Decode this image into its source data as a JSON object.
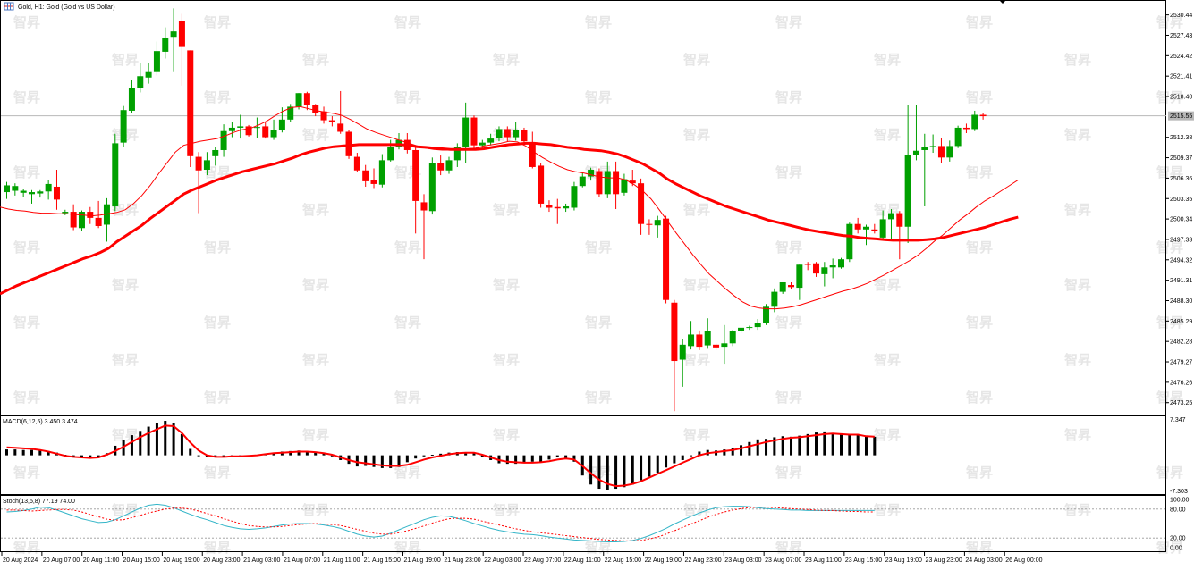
{
  "header": {
    "title": "Gold, H1:  Gold (Gold vs US Dollar)",
    "icon": "chart-window-icon"
  },
  "watermark": "智昇",
  "price_axis": {
    "ticks": [
      "2530.44",
      "2527.43",
      "2524.42",
      "2521.41",
      "2518.40",
      "2512.38",
      "2509.37",
      "2506.36",
      "2503.35",
      "2500.34",
      "2497.33",
      "2494.32",
      "2491.31",
      "2488.30",
      "2485.29",
      "2482.28",
      "2479.27",
      "2476.26",
      "2473.25"
    ],
    "current_price": "2515.55",
    "range": [
      2471.5,
      2532.5
    ]
  },
  "time_axis": {
    "labels": [
      "20 Aug 2024",
      "20 Aug 07:00",
      "20 Aug 11:00",
      "20 Aug 15:00",
      "20 Aug 19:00",
      "20 Aug 23:00",
      "21 Aug 03:00",
      "21 Aug 07:00",
      "21 Aug 11:00",
      "21 Aug 15:00",
      "21 Aug 19:00",
      "21 Aug 23:00",
      "22 Aug 03:00",
      "22 Aug 07:00",
      "22 Aug 11:00",
      "22 Aug 15:00",
      "22 Aug 19:00",
      "22 Aug 23:00",
      "23 Aug 03:00",
      "23 Aug 07:00",
      "23 Aug 11:00",
      "23 Aug 15:00",
      "23 Aug 19:00",
      "23 Aug 23:00",
      "24 Aug 03:00",
      "26 Aug 00:00"
    ]
  },
  "macd": {
    "label": "MACD(6,12,5) 3.450 3.474",
    "top_label": "7.347",
    "bottom_label": "-7.303",
    "range": [
      -7.303,
      7.347
    ],
    "histogram": [
      1.1,
      1.1,
      1.0,
      1.0,
      0.9,
      0.8,
      0.5,
      0.1,
      -0.1,
      -0.3,
      -0.5,
      -0.4,
      0.4,
      1.8,
      2.8,
      3.8,
      4.6,
      5.4,
      6.1,
      6.5,
      6.0,
      4.0,
      1.2,
      -0.1,
      -0.3,
      -0.3,
      -0.2,
      -0.1,
      -0.1,
      -0.1,
      0.1,
      0.3,
      0.5,
      0.7,
      0.8,
      0.9,
      0.8,
      0.6,
      0.4,
      -0.2,
      -0.9,
      -1.6,
      -2.1,
      -2.0,
      -2.2,
      -2.4,
      -2.4,
      -2.2,
      -1.3,
      -0.6,
      -0.2,
      0.1,
      0.3,
      0.5,
      0.6,
      0.6,
      0.4,
      -0.3,
      -0.9,
      -1.5,
      -1.6,
      -1.6,
      -1.5,
      -1.2,
      -1.2,
      -0.8,
      -0.4,
      -0.5,
      -1.2,
      -3.8,
      -5.5,
      -6.3,
      -6.5,
      -6.3,
      -6.0,
      -5.5,
      -4.7,
      -4.0,
      -3.3,
      -2.3,
      -1.5,
      -0.9,
      -0.1,
      0.7,
      1.0,
      0.9,
      1.1,
      1.4,
      1.9,
      2.5,
      3.0,
      3.1,
      3.4,
      3.6,
      3.5,
      3.7,
      4.0,
      4.3,
      4.5,
      4.2,
      4.0,
      3.9,
      3.8,
      3.6,
      3.5
    ],
    "signal": [
      1.5,
      1.4,
      1.3,
      1.2,
      1.0,
      0.7,
      0.3,
      -0.1,
      -0.3,
      -0.4,
      -0.5,
      -0.4,
      0.1,
      0.8,
      1.6,
      2.5,
      3.4,
      4.2,
      4.9,
      5.6,
      5.5,
      4.2,
      2.4,
      0.9,
      0.0,
      -0.3,
      -0.3,
      -0.2,
      -0.2,
      -0.1,
      0.0,
      0.2,
      0.4,
      0.5,
      0.6,
      0.7,
      0.7,
      0.6,
      0.4,
      0.1,
      -0.4,
      -0.9,
      -1.3,
      -1.5,
      -1.7,
      -1.9,
      -2.0,
      -2.0,
      -1.8,
      -1.3,
      -0.8,
      -0.4,
      -0.1,
      0.2,
      0.4,
      0.5,
      0.5,
      0.1,
      -0.4,
      -0.9,
      -1.2,
      -1.3,
      -1.4,
      -1.4,
      -1.3,
      -1.1,
      -0.8,
      -0.6,
      -0.8,
      -2.0,
      -3.4,
      -4.6,
      -5.4,
      -5.8,
      -5.7,
      -5.4,
      -4.9,
      -4.2,
      -3.5,
      -2.8,
      -2.1,
      -1.4,
      -0.7,
      0.0,
      0.4,
      0.6,
      0.8,
      1.0,
      1.3,
      1.7,
      2.1,
      2.5,
      2.8,
      3.1,
      3.3,
      3.4,
      3.6,
      3.8,
      4.0,
      4.1,
      4.0,
      3.9,
      3.9,
      3.6,
      3.5
    ]
  },
  "stoch": {
    "label": "Stoch(13,5,8) 77.19 74.00",
    "levels": [
      "100.00",
      "80.00",
      "20.00",
      "0.00"
    ],
    "main": [
      74,
      75,
      77,
      80,
      84,
      83,
      78,
      72,
      66,
      60,
      56,
      52,
      53,
      58,
      66,
      74,
      82,
      88,
      90,
      88,
      83,
      76,
      69,
      63,
      58,
      52,
      46,
      42,
      39,
      38,
      39,
      41,
      44,
      47,
      49,
      50,
      50,
      49,
      47,
      44,
      40,
      34,
      28,
      24,
      22,
      24,
      30,
      37,
      44,
      51,
      58,
      63,
      66,
      65,
      61,
      56,
      50,
      45,
      40,
      36,
      33,
      30,
      28,
      27,
      25,
      22,
      20,
      18,
      16,
      15,
      14,
      13,
      12,
      12,
      13,
      15,
      19,
      25,
      32,
      40,
      49,
      57,
      65,
      72,
      78,
      83,
      85,
      86,
      86,
      85,
      83,
      81,
      80,
      79,
      78,
      78,
      77,
      77,
      77,
      77,
      77,
      77,
      77,
      77,
      77
    ],
    "signal": [
      78,
      78,
      77,
      76,
      77,
      78,
      79,
      79,
      78,
      74,
      69,
      64,
      59,
      57,
      58,
      62,
      67,
      72,
      76,
      80,
      82,
      82,
      80,
      76,
      71,
      66,
      60,
      55,
      50,
      46,
      44,
      43,
      43,
      44,
      46,
      48,
      49,
      50,
      49,
      48,
      46,
      42,
      38,
      34,
      30,
      28,
      28,
      31,
      35,
      40,
      45,
      51,
      56,
      60,
      61,
      61,
      59,
      55,
      51,
      47,
      43,
      39,
      36,
      33,
      31,
      29,
      27,
      25,
      23,
      21,
      19,
      17,
      16,
      15,
      14,
      14,
      15,
      18,
      22,
      28,
      35,
      42,
      49,
      56,
      63,
      69,
      74,
      78,
      81,
      83,
      84,
      84,
      83,
      82,
      81,
      80,
      79,
      78,
      77,
      77,
      76,
      75,
      75,
      74,
      74
    ]
  },
  "chart_data": {
    "type": "candlestick",
    "symbol": "Gold",
    "timeframe": "H1",
    "colors": {
      "bull": "#00a000",
      "bear": "#ff0000",
      "ma_slow": "#ff0000",
      "ma_fast": "#ff0000",
      "macd_signal": "#ff0000",
      "stoch_main": "#33b5c8",
      "stoch_signal": "#ff0000"
    },
    "candles": [
      [
        2504.3,
        2505.3,
        2503.3,
        2505.8
      ],
      [
        2504.5,
        2505.2,
        2503.8,
        2505.6
      ],
      [
        2504.2,
        2504.5,
        2503.6,
        2504.8
      ],
      [
        2504.0,
        2504.3,
        2502.6,
        2504.6
      ],
      [
        2504.1,
        2504.4,
        2503.5,
        2504.6
      ],
      [
        2504.4,
        2505.5,
        2503.2,
        2506.1
      ],
      [
        2505.1,
        2503.2,
        2501.7,
        2507.6
      ],
      [
        2501.2,
        2501.4,
        2500.9,
        2501.7
      ],
      [
        2501.4,
        2499.1,
        2498.7,
        2502.5
      ],
      [
        2499.0,
        2501.4,
        2498.6,
        2501.6
      ],
      [
        2501.4,
        2500.5,
        2499.6,
        2502.1
      ],
      [
        2500.5,
        2499.3,
        2499.0,
        2503.0
      ],
      [
        2499.5,
        2502.5,
        2497.0,
        2503.4
      ],
      [
        2502.2,
        2511.5,
        2501.5,
        2512.9
      ],
      [
        2511.6,
        2516.4,
        2511.0,
        2517.0
      ],
      [
        2516.3,
        2519.7,
        2516.0,
        2520.9
      ],
      [
        2519.6,
        2521.4,
        2519.0,
        2523.4
      ],
      [
        2521.2,
        2522.0,
        2520.3,
        2523.3
      ],
      [
        2522.0,
        2525.1,
        2521.5,
        2526.5
      ],
      [
        2525.0,
        2527.1,
        2524.0,
        2528.6
      ],
      [
        2527.2,
        2528.0,
        2522.0,
        2531.4
      ],
      [
        2529.6,
        2525.7,
        2520.0,
        2530.6
      ],
      [
        2525.2,
        2509.6,
        2508.0,
        2525.2
      ],
      [
        2509.5,
        2507.5,
        2501.2,
        2510.2
      ],
      [
        2507.6,
        2509.0,
        2506.8,
        2510.2
      ],
      [
        2509.6,
        2510.5,
        2508.2,
        2511.0
      ],
      [
        2510.5,
        2513.3,
        2509.5,
        2514.3
      ],
      [
        2513.3,
        2513.8,
        2512.4,
        2514.7
      ],
      [
        2513.8,
        2514.0,
        2512.2,
        2515.7
      ],
      [
        2514.0,
        2512.7,
        2512.5,
        2514.2
      ],
      [
        2513.9,
        2513.9,
        2512.3,
        2515.3
      ],
      [
        2514.0,
        2512.4,
        2512.2,
        2514.7
      ],
      [
        2512.4,
        2513.5,
        2512.0,
        2515.0
      ],
      [
        2513.5,
        2515.0,
        2513.1,
        2516.8
      ],
      [
        2515.0,
        2516.9,
        2514.7,
        2517.3
      ],
      [
        2516.9,
        2518.9,
        2516.5,
        2518.9
      ],
      [
        2518.9,
        2517.2,
        2516.4,
        2519.1
      ],
      [
        2517.1,
        2516.0,
        2515.5,
        2517.3
      ],
      [
        2516.2,
        2514.9,
        2514.4,
        2516.9
      ],
      [
        2514.9,
        2514.6,
        2514.0,
        2515.5
      ],
      [
        2514.4,
        2513.2,
        2512.9,
        2519.2
      ],
      [
        2513.2,
        2509.6,
        2509.2,
        2513.4
      ],
      [
        2509.5,
        2507.5,
        2507.3,
        2510.1
      ],
      [
        2507.5,
        2505.9,
        2505.1,
        2508.3
      ],
      [
        2506.1,
        2505.5,
        2504.9,
        2507.8
      ],
      [
        2505.4,
        2509.0,
        2505.0,
        2509.9
      ],
      [
        2509.0,
        2511.0,
        2508.8,
        2512.0
      ],
      [
        2511.0,
        2512.0,
        2510.6,
        2513.0
      ],
      [
        2512.0,
        2510.5,
        2510.0,
        2513.0
      ],
      [
        2510.5,
        2503.0,
        2498.2,
        2511.0
      ],
      [
        2502.8,
        2501.6,
        2494.4,
        2504.0
      ],
      [
        2501.5,
        2508.6,
        2501.0,
        2509.4
      ],
      [
        2508.6,
        2507.5,
        2506.8,
        2509.7
      ],
      [
        2507.5,
        2509.0,
        2507.0,
        2509.5
      ],
      [
        2509.0,
        2511.0,
        2508.0,
        2511.5
      ],
      [
        2511.0,
        2515.3,
        2508.6,
        2517.5
      ],
      [
        2515.3,
        2511.2,
        2510.8,
        2515.6
      ],
      [
        2511.2,
        2511.6,
        2510.7,
        2512.0
      ],
      [
        2511.6,
        2512.2,
        2511.2,
        2512.9
      ],
      [
        2512.2,
        2513.6,
        2511.8,
        2514.0
      ],
      [
        2513.6,
        2512.4,
        2511.8,
        2514.0
      ],
      [
        2512.4,
        2513.4,
        2511.9,
        2514.6
      ],
      [
        2513.4,
        2511.8,
        2511.4,
        2513.8
      ],
      [
        2511.6,
        2508.0,
        2507.8,
        2513.2
      ],
      [
        2508.2,
        2502.6,
        2502.0,
        2508.6
      ],
      [
        2502.4,
        2502.0,
        2501.4,
        2503.1
      ],
      [
        2502.1,
        2501.9,
        2499.6,
        2503.3
      ],
      [
        2501.9,
        2502.2,
        2501.4,
        2502.6
      ],
      [
        2502.0,
        2505.2,
        2501.6,
        2505.8
      ],
      [
        2505.2,
        2506.6,
        2505.0,
        2507.2
      ],
      [
        2506.6,
        2507.6,
        2506.0,
        2507.9
      ],
      [
        2507.4,
        2504.0,
        2503.6,
        2507.8
      ],
      [
        2504.0,
        2507.4,
        2503.4,
        2508.8
      ],
      [
        2507.4,
        2504.0,
        2501.8,
        2508.8
      ],
      [
        2504.2,
        2506.2,
        2503.8,
        2507.0
      ],
      [
        2506.0,
        2505.6,
        2505.2,
        2507.6
      ],
      [
        2505.6,
        2499.6,
        2498.0,
        2506.3
      ],
      [
        2499.6,
        2499.5,
        2498.0,
        2500.3
      ],
      [
        2499.4,
        2500.2,
        2497.6,
        2500.8
      ],
      [
        2500.4,
        2488.4,
        2487.9,
        2500.8
      ],
      [
        2488.0,
        2479.4,
        2472.0,
        2488.4
      ],
      [
        2479.6,
        2481.8,
        2475.6,
        2482.6
      ],
      [
        2481.6,
        2483.3,
        2481.1,
        2485.3
      ],
      [
        2483.3,
        2481.5,
        2481.0,
        2483.9
      ],
      [
        2481.7,
        2483.8,
        2481.2,
        2485.7
      ],
      [
        2481.8,
        2481.4,
        2481.0,
        2482.0
      ],
      [
        2481.5,
        2482.0,
        2479.0,
        2484.7
      ],
      [
        2482.0,
        2483.8,
        2481.6,
        2484.0
      ],
      [
        2483.8,
        2484.3,
        2483.5,
        2484.3
      ],
      [
        2484.3,
        2484.4,
        2484.0,
        2484.6
      ],
      [
        2484.4,
        2485.0,
        2484.0,
        2485.6
      ],
      [
        2485.0,
        2487.4,
        2484.7,
        2487.8
      ],
      [
        2487.4,
        2489.6,
        2486.6,
        2490.1
      ],
      [
        2489.6,
        2491.0,
        2489.3,
        2491.0
      ],
      [
        2490.6,
        2490.3,
        2490.0,
        2491.0
      ],
      [
        2490.2,
        2493.6,
        2488.4,
        2493.6
      ],
      [
        2493.7,
        2493.6,
        2492.8,
        2494.0
      ],
      [
        2493.8,
        2492.3,
        2491.8,
        2494.0
      ],
      [
        2492.2,
        2493.2,
        2490.4,
        2494.0
      ],
      [
        2493.2,
        2493.5,
        2491.6,
        2494.5
      ],
      [
        2493.2,
        2494.4,
        2493.0,
        2494.6
      ],
      [
        2494.4,
        2499.6,
        2494.0,
        2499.8
      ],
      [
        2499.6,
        2498.8,
        2498.2,
        2500.5
      ],
      [
        2498.8,
        2499.2,
        2496.5,
        2499.5
      ],
      [
        2498.8,
        2498.6,
        2498.2,
        2499.6
      ],
      [
        2497.6,
        2500.3,
        2497.3,
        2501.6
      ],
      [
        2500.3,
        2501.2,
        2497.2,
        2501.8
      ],
      [
        2501.2,
        2499.2,
        2494.4,
        2501.5
      ],
      [
        2499.2,
        2509.8,
        2496.8,
        2517.2
      ],
      [
        2509.8,
        2510.4,
        2509.0,
        2517.2
      ],
      [
        2510.5,
        2510.9,
        2502.2,
        2512.9
      ],
      [
        2510.9,
        2511.1,
        2510.1,
        2512.8
      ],
      [
        2511.1,
        2509.4,
        2508.6,
        2512.3
      ],
      [
        2509.4,
        2511.1,
        2508.8,
        2511.9
      ],
      [
        2511.1,
        2513.8,
        2510.8,
        2514.1
      ],
      [
        2513.8,
        2513.6,
        2513.0,
        2514.4
      ],
      [
        2513.6,
        2515.7,
        2513.3,
        2516.3
      ],
      [
        2515.7,
        2515.5,
        2515.0,
        2516.0
      ]
    ],
    "ma_slow": [
      2489.3,
      2489.9,
      2490.5,
      2491.0,
      2491.5,
      2492.0,
      2492.5,
      2493.0,
      2493.5,
      2494.0,
      2494.5,
      2494.9,
      2495.4,
      2496.0,
      2497.0,
      2497.8,
      2498.6,
      2499.4,
      2500.4,
      2501.3,
      2502.2,
      2503.1,
      2504.0,
      2504.6,
      2505.1,
      2505.6,
      2506.1,
      2506.5,
      2506.9,
      2507.3,
      2507.6,
      2507.9,
      2508.2,
      2508.5,
      2508.9,
      2509.3,
      2509.8,
      2510.2,
      2510.5,
      2510.8,
      2511.0,
      2511.1,
      2511.2,
      2511.3,
      2511.3,
      2511.3,
      2511.3,
      2511.3,
      2511.3,
      2511.2,
      2511.0,
      2510.9,
      2510.8,
      2510.7,
      2510.6,
      2510.6,
      2510.6,
      2510.6,
      2510.7,
      2510.9,
      2511.1,
      2511.3,
      2511.4,
      2511.5,
      2511.5,
      2511.4,
      2511.3,
      2511.1,
      2510.9,
      2510.8,
      2510.6,
      2510.5,
      2510.4,
      2510.2,
      2509.9,
      2509.5,
      2509.0,
      2508.5,
      2507.8,
      2507.1,
      2506.2,
      2505.5,
      2504.9,
      2504.3,
      2503.7,
      2503.2,
      2502.7,
      2502.2,
      2501.8,
      2501.4,
      2501.0,
      2500.6,
      2500.2,
      2499.9,
      2499.6,
      2499.3,
      2499.0,
      2498.7,
      2498.5,
      2498.3,
      2498.1,
      2497.9,
      2497.8,
      2497.6,
      2497.5,
      2497.4,
      2497.3,
      2497.2,
      2497.2,
      2497.2,
      2497.2,
      2497.3,
      2497.4,
      2497.6,
      2497.9,
      2498.2,
      2498.5,
      2498.8,
      2499.1,
      2499.5,
      2499.9,
      2500.3,
      2500.6
    ],
    "ma_fast": [
      2502.1,
      2501.8,
      2501.6,
      2501.5,
      2501.3,
      2501.2,
      2501.2,
      2501.1,
      2501.1,
      2501.0,
      2500.9,
      2500.8,
      2500.9,
      2501.1,
      2501.3,
      2501.7,
      2502.6,
      2503.8,
      2505.3,
      2507.0,
      2508.6,
      2510.2,
      2511.2,
      2511.5,
      2511.8,
      2512.0,
      2512.2,
      2512.6,
      2513.1,
      2513.5,
      2513.7,
      2514.2,
      2514.8,
      2515.6,
      2516.3,
      2516.8,
      2516.9,
      2516.6,
      2516.3,
      2516.1,
      2515.9,
      2515.6,
      2515.0,
      2514.3,
      2513.6,
      2513.1,
      2512.7,
      2512.3,
      2511.9,
      2511.5,
      2511.1,
      2510.8,
      2510.6,
      2510.5,
      2510.5,
      2510.6,
      2510.7,
      2510.8,
      2511.1,
      2511.3,
      2511.5,
      2511.8,
      2511.7,
      2511.1,
      2510.2,
      2509.4,
      2508.7,
      2508.1,
      2507.6,
      2507.3,
      2507.1,
      2506.8,
      2506.5,
      2506.4,
      2506.4,
      2506.1,
      2505.4,
      2504.5,
      2503.3,
      2501.7,
      2500.0,
      2498.3,
      2496.7,
      2495.1,
      2493.6,
      2492.2,
      2491.1,
      2490.0,
      2489.0,
      2488.1,
      2487.5,
      2487.2,
      2487.1,
      2487.1,
      2487.2,
      2487.4,
      2487.7,
      2488.1,
      2488.5,
      2488.9,
      2489.3,
      2489.7,
      2490.0,
      2490.4,
      2490.9,
      2491.5,
      2492.1,
      2492.8,
      2493.5,
      2494.2,
      2495.0,
      2496.0,
      2497.1,
      2498.0,
      2499.1,
      2500.2,
      2501.1,
      2502.1,
      2503.0,
      2503.7,
      2504.5,
      2505.3,
      2506.1
    ]
  }
}
